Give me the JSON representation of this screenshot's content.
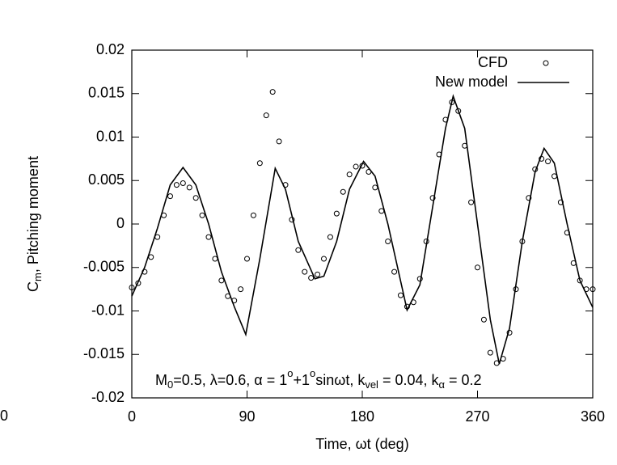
{
  "chart_data": {
    "type": "line",
    "xlabel": "Time, ωt (deg)",
    "ylabel": [
      {
        "text": "C"
      },
      {
        "text": "m",
        "baseline": "sub"
      },
      {
        "text": ", Pitching moment"
      }
    ],
    "annotation": [
      {
        "text": "M"
      },
      {
        "text": "0",
        "baseline": "sub"
      },
      {
        "text": "=0.5, λ=0.6, α = 1"
      },
      {
        "text": "o",
        "baseline": "super"
      },
      {
        "text": "+1"
      },
      {
        "text": "o",
        "baseline": "super"
      },
      {
        "text": "sinωt, k"
      },
      {
        "text": "vel",
        "baseline": "sub"
      },
      {
        "text": " = 0.04, k"
      },
      {
        "text": "α",
        "baseline": "sub"
      },
      {
        "text": " = 0.2"
      }
    ],
    "xlim": [
      0,
      360
    ],
    "xticks": [
      0,
      90,
      180,
      270,
      360
    ],
    "ylim": [
      -0.02,
      0.02
    ],
    "yticks": [
      -0.02,
      -0.015,
      -0.01,
      -0.005,
      0,
      0.005,
      0.01,
      0.015,
      0.02
    ],
    "legend": "top-right",
    "series": [
      {
        "name": "CFD",
        "mode": "markers",
        "color": "#000000",
        "x": [
          0,
          5,
          10,
          15,
          20,
          25,
          30,
          35,
          40,
          45,
          50,
          55,
          60,
          65,
          70,
          75,
          80,
          85,
          90,
          95,
          100,
          105,
          110,
          115,
          120,
          125,
          130,
          135,
          140,
          145,
          150,
          155,
          160,
          165,
          170,
          175,
          180,
          185,
          190,
          195,
          200,
          205,
          210,
          215,
          220,
          225,
          230,
          235,
          240,
          245,
          250,
          255,
          260,
          265,
          270,
          275,
          280,
          285,
          290,
          295,
          300,
          305,
          310,
          315,
          320,
          325,
          330,
          335,
          340,
          345,
          350,
          355,
          360
        ],
        "values": [
          -0.0073,
          -0.0068,
          -0.0055,
          -0.0038,
          -0.0015,
          0.001,
          0.0032,
          0.0045,
          0.0047,
          0.0042,
          0.003,
          0.001,
          -0.0015,
          -0.004,
          -0.0065,
          -0.0083,
          -0.0088,
          -0.0075,
          -0.004,
          0.001,
          0.007,
          0.0125,
          0.0152,
          0.0095,
          0.0045,
          0.0005,
          -0.003,
          -0.0055,
          -0.0062,
          -0.0058,
          -0.004,
          -0.0015,
          0.0012,
          0.0037,
          0.0057,
          0.0066,
          0.0067,
          0.006,
          0.0042,
          0.0015,
          -0.002,
          -0.0055,
          -0.0082,
          -0.0095,
          -0.009,
          -0.0063,
          -0.002,
          0.003,
          0.008,
          0.012,
          0.014,
          0.013,
          0.009,
          0.0025,
          -0.005,
          -0.011,
          -0.0148,
          -0.016,
          -0.0155,
          -0.0125,
          -0.0075,
          -0.002,
          0.003,
          0.0063,
          0.0075,
          0.0072,
          0.0055,
          0.0025,
          -0.001,
          -0.0045,
          -0.0065,
          -0.0075,
          -0.0075
        ]
      },
      {
        "name": "New model",
        "mode": "line",
        "color": "#000000",
        "x": [
          0,
          10,
          20,
          30,
          40,
          50,
          60,
          70,
          80,
          89,
          100,
          112,
          120,
          130,
          143,
          150,
          160,
          170,
          181,
          190,
          200,
          215,
          225,
          235,
          245,
          251,
          260,
          270,
          280,
          287,
          295,
          305,
          315,
          322,
          330,
          340,
          350,
          360
        ],
        "values": [
          -0.0083,
          -0.005,
          -0.0005,
          0.0045,
          0.0065,
          0.0045,
          0.0,
          -0.0055,
          -0.0095,
          -0.0127,
          -0.004,
          0.0064,
          0.004,
          -0.002,
          -0.0063,
          -0.006,
          -0.002,
          0.004,
          0.0072,
          0.0055,
          0.0,
          -0.0099,
          -0.007,
          0.002,
          0.011,
          0.0147,
          0.011,
          0.0,
          -0.011,
          -0.0161,
          -0.012,
          -0.002,
          0.006,
          0.0087,
          0.007,
          0.0,
          -0.0065,
          -0.0096
        ]
      }
    ]
  },
  "edge_label": "0"
}
